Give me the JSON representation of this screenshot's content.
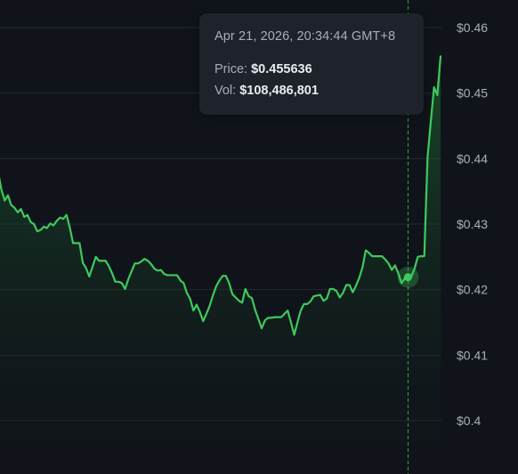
{
  "chart_data": {
    "type": "area",
    "title": "",
    "xlabel": "",
    "ylabel": "",
    "ylim": [
      0.395,
      0.4615
    ],
    "y_ticks": [
      {
        "value": 0.46,
        "label": "$0.46"
      },
      {
        "value": 0.45,
        "label": "$0.45"
      },
      {
        "value": 0.44,
        "label": "$0.44"
      },
      {
        "value": 0.43,
        "label": "$0.43"
      },
      {
        "value": 0.42,
        "label": "$0.42"
      },
      {
        "value": 0.41,
        "label": "$0.41"
      },
      {
        "value": 0.4,
        "label": "$0.4"
      }
    ],
    "grid": true,
    "y_axis_position": "right",
    "line_color": "#3ec95c",
    "hover_index": 126,
    "series": [
      {
        "values": [
          0.4379,
          0.4352,
          0.4336,
          0.4344,
          0.4329,
          0.4325,
          0.4318,
          0.4323,
          0.4311,
          0.4314,
          0.4303,
          0.43,
          0.4289,
          0.4291,
          0.4296,
          0.4294,
          0.4301,
          0.4298,
          0.4305,
          0.431,
          0.4308,
          0.4314,
          0.4295,
          0.4271,
          0.4271,
          0.4271,
          0.4241,
          0.4233,
          0.422,
          0.4235,
          0.425,
          0.4244,
          0.4244,
          0.4244,
          0.4236,
          0.4225,
          0.4212,
          0.4212,
          0.421,
          0.4201,
          0.4216,
          0.4228,
          0.424,
          0.424,
          0.4243,
          0.4247,
          0.4244,
          0.4239,
          0.4232,
          0.4229,
          0.423,
          0.4224,
          0.4222,
          0.4222,
          0.4222,
          0.4222,
          0.4214,
          0.421,
          0.4195,
          0.4186,
          0.4168,
          0.4177,
          0.4166,
          0.4152,
          0.4163,
          0.4175,
          0.4191,
          0.4205,
          0.4214,
          0.4221,
          0.4221,
          0.421,
          0.4193,
          0.4188,
          0.4183,
          0.418,
          0.4201,
          0.419,
          0.4187,
          0.4169,
          0.4155,
          0.4141,
          0.4153,
          0.4157,
          0.4157,
          0.4158,
          0.4158,
          0.4158,
          0.4163,
          0.4168,
          0.415,
          0.4131,
          0.415,
          0.4168,
          0.4178,
          0.4178,
          0.4182,
          0.419,
          0.4191,
          0.4192,
          0.4183,
          0.4186,
          0.4201,
          0.4201,
          0.4198,
          0.4188,
          0.4195,
          0.4207,
          0.4207,
          0.4196,
          0.4206,
          0.4218,
          0.4234,
          0.426,
          0.4256,
          0.4251,
          0.4251,
          0.4251,
          0.4251,
          0.4246,
          0.424,
          0.423,
          0.4237,
          0.4225,
          0.421,
          0.4217,
          0.4219,
          0.422,
          0.4232,
          0.425,
          0.4251,
          0.4251,
          0.4402,
          0.4457,
          0.4509,
          0.4497,
          0.4556
        ]
      }
    ],
    "tooltip": {
      "datetime": "Apr 21, 2026, 20:34:44 GMT+8",
      "price_label": "Price: ",
      "price_value": "$0.455636",
      "vol_label": "Vol: ",
      "vol_value": "$108,486,801"
    }
  }
}
